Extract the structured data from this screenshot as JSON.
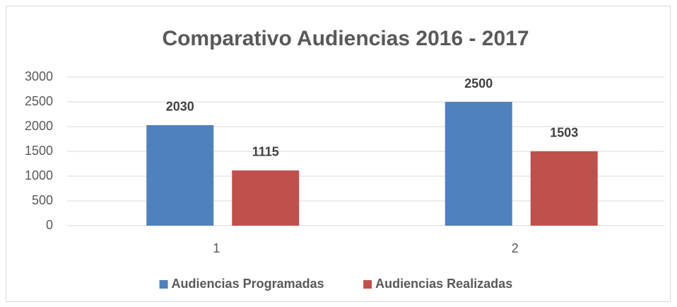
{
  "chart_data": {
    "type": "bar",
    "title": "Comparativo Audiencias 2016 - 2017",
    "categories": [
      "1",
      "2"
    ],
    "series": [
      {
        "name": "Audiencias Programadas",
        "color": "#4f81bd",
        "values": [
          2030,
          2500
        ]
      },
      {
        "name": "Audiencias Realizadas",
        "color": "#c0504d",
        "values": [
          1115,
          1503
        ]
      }
    ],
    "ylim": [
      0,
      3000
    ],
    "yticks": [
      0,
      500,
      1000,
      1500,
      2000,
      2500,
      3000
    ],
    "grid": true,
    "legend": "bottom",
    "data_labels": true
  }
}
